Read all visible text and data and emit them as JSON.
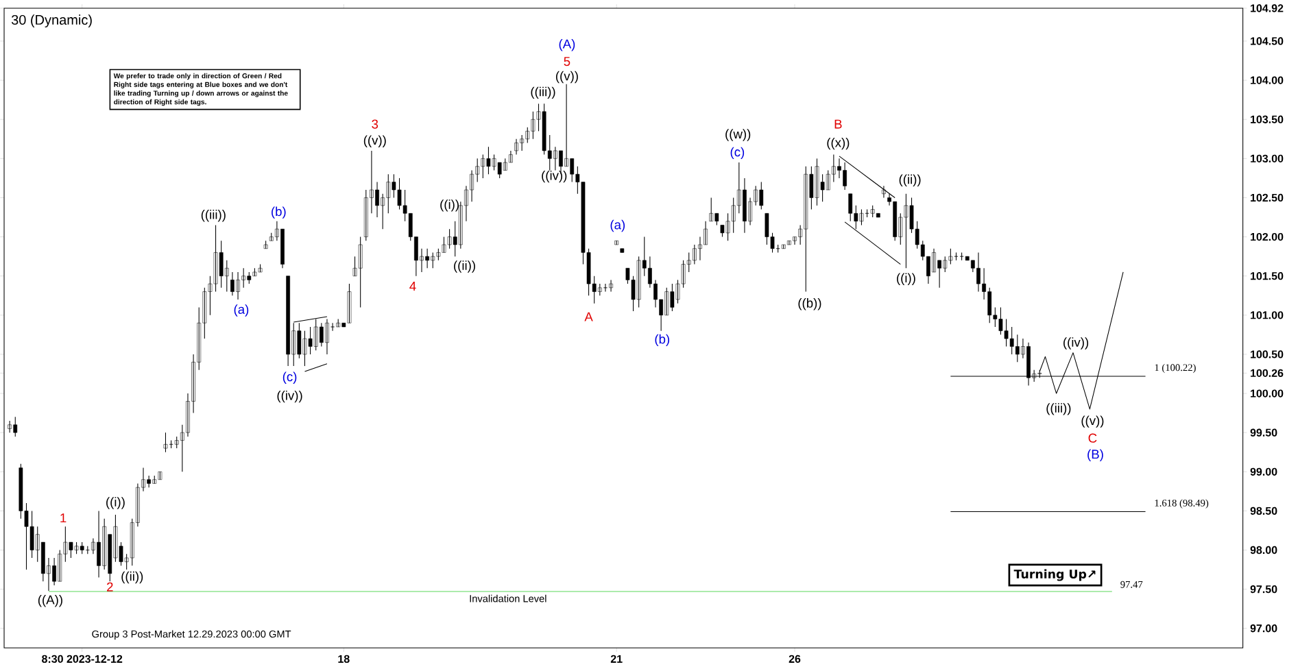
{
  "chart_data": {
    "type": "candlestick",
    "title": "30 (Dynamic)",
    "color": "#000000",
    "categories": [
      null,
      null,
      null,
      null,
      null,
      null,
      null,
      null,
      null,
      null,
      null,
      null,
      null,
      "8:30 2023-12-12",
      null,
      null,
      null,
      null,
      null,
      null,
      null,
      null,
      null,
      null,
      null,
      null,
      null,
      null,
      null,
      null,
      null,
      null,
      null,
      null,
      null,
      null,
      null,
      null,
      null,
      null,
      null,
      null,
      null,
      null,
      null,
      null,
      null,
      null,
      null,
      null,
      null,
      null,
      null,
      null,
      null,
      null,
      null,
      null,
      null,
      null,
      "18",
      null,
      null,
      null,
      null,
      null,
      null,
      null,
      null,
      null,
      null,
      null,
      null,
      null,
      null,
      null,
      null,
      null,
      null,
      null,
      null,
      null,
      null,
      null,
      null,
      null,
      null,
      null,
      null,
      null,
      null,
      null,
      null,
      null,
      null,
      null,
      null,
      null,
      null,
      null,
      null,
      null,
      null,
      null,
      null,
      null,
      null,
      null,
      null,
      "21",
      null,
      null,
      null,
      null,
      null,
      null,
      null,
      null,
      null,
      null,
      null,
      null,
      null,
      null,
      null,
      null,
      null,
      null,
      null,
      null,
      null,
      null,
      null,
      null,
      null,
      null,
      null,
      null,
      null,
      null,
      null,
      "26",
      null,
      null,
      null,
      null,
      null,
      null,
      null,
      null,
      null,
      null,
      null,
      null,
      null,
      null,
      null,
      null,
      null,
      null,
      null,
      null,
      null,
      null,
      null,
      null,
      null,
      null,
      null,
      null,
      null,
      null,
      null,
      null,
      null,
      null,
      null,
      null,
      null,
      null,
      null,
      null,
      null,
      null,
      null,
      null,
      null,
      null,
      null,
      null,
      null,
      null,
      null,
      null,
      null,
      null,
      null,
      null,
      null,
      null,
      null,
      null,
      null,
      null,
      null,
      null,
      null,
      null,
      null,
      null,
      null,
      null,
      null,
      null,
      null,
      null,
      null,
      null,
      null,
      null,
      null,
      null
    ],
    "ylim": [
      96.75,
      104.92
    ],
    "yticks": [
      {
        "value": 97,
        "label": "97.00"
      },
      {
        "value": 97.5,
        "label": "97.50"
      },
      {
        "value": 98,
        "label": "98.00"
      },
      {
        "value": 98.5,
        "label": "98.50"
      },
      {
        "value": 99,
        "label": "99.00"
      },
      {
        "value": 99.5,
        "label": "99.50"
      },
      {
        "value": 100,
        "label": "100.00"
      },
      100.26,
      {
        "value": 100.5,
        "label": "100.50"
      },
      {
        "value": 101,
        "label": "101.00"
      },
      {
        "value": 101.5,
        "label": "101.50"
      },
      {
        "value": 102,
        "label": "102.00"
      },
      {
        "value": 102.5,
        "label": "102.50"
      },
      {
        "value": 103,
        "label": "103.00"
      },
      {
        "value": 103.5,
        "label": "103.50"
      },
      {
        "value": 104,
        "label": "104.00"
      },
      {
        "value": 104.5,
        "label": "104.50"
      },
      104.92
    ],
    "ohlc": [
      [
        99.55,
        99.65,
        99.5,
        99.6
      ],
      [
        99.6,
        99.7,
        99.45,
        99.5
      ],
      [
        99.05,
        99.1,
        98.4,
        98.5
      ],
      [
        98.5,
        98.6,
        97.75,
        98.3
      ],
      [
        98.3,
        98.5,
        97.9,
        98.0
      ],
      [
        98.0,
        98.3,
        97.85,
        98.2
      ],
      [
        98.1,
        98.1,
        97.6,
        97.7
      ],
      [
        97.7,
        97.9,
        97.48,
        97.8
      ],
      [
        97.8,
        97.9,
        97.55,
        97.6
      ],
      [
        97.6,
        98.0,
        97.6,
        97.95
      ],
      [
        97.95,
        98.3,
        97.85,
        98.1
      ],
      [
        98.1,
        98.1,
        97.9,
        98.0
      ],
      [
        98.0,
        98.1,
        97.95,
        98.05
      ],
      [
        98.05,
        98.1,
        97.95,
        98.0
      ],
      [
        98.0,
        98.05,
        97.95,
        98.0
      ],
      [
        98.0,
        98.15,
        97.95,
        98.1
      ],
      [
        98.1,
        98.5,
        97.65,
        97.8
      ],
      [
        97.8,
        98.4,
        97.75,
        98.3
      ],
      [
        98.2,
        98.2,
        97.6,
        97.7
      ],
      [
        97.9,
        98.45,
        97.85,
        98.3
      ],
      [
        98.05,
        98.1,
        97.8,
        97.85
      ],
      [
        97.85,
        97.95,
        97.75,
        97.9
      ],
      [
        97.9,
        98.4,
        97.8,
        98.35
      ],
      [
        98.35,
        98.85,
        98.3,
        98.8
      ],
      [
        98.8,
        99.05,
        98.75,
        98.9
      ],
      [
        98.9,
        98.95,
        98.8,
        98.85
      ],
      [
        98.85,
        98.95,
        98.85,
        98.9
      ],
      [
        98.9,
        99.0,
        98.9,
        99.0
      ],
      [
        99.3,
        99.5,
        99.25,
        99.35
      ],
      [
        99.35,
        99.4,
        99.3,
        99.35
      ],
      [
        99.35,
        99.45,
        99.3,
        99.4
      ],
      [
        99.4,
        99.6,
        99.0,
        99.5
      ],
      [
        99.5,
        100.0,
        99.45,
        99.9
      ],
      [
        99.9,
        100.5,
        99.75,
        100.4
      ],
      [
        100.4,
        101.1,
        100.3,
        100.9
      ],
      [
        100.9,
        101.35,
        100.7,
        101.3
      ],
      [
        101.3,
        101.5,
        101.0,
        101.4
      ],
      [
        101.4,
        102.15,
        101.3,
        101.8
      ],
      [
        101.8,
        101.95,
        101.35,
        101.5
      ],
      [
        101.5,
        101.7,
        101.3,
        101.6
      ],
      [
        101.45,
        101.55,
        101.25,
        101.3
      ],
      [
        101.3,
        101.55,
        101.2,
        101.45
      ],
      [
        101.45,
        101.6,
        101.35,
        101.5
      ],
      [
        101.5,
        101.55,
        101.4,
        101.45
      ],
      [
        101.5,
        101.6,
        101.5,
        101.55
      ],
      [
        101.55,
        101.65,
        101.55,
        101.6
      ],
      [
        101.85,
        101.95,
        101.85,
        101.9
      ],
      [
        101.95,
        102.05,
        101.95,
        102.0
      ],
      [
        102.0,
        102.2,
        101.95,
        102.1
      ],
      [
        102.1,
        102.1,
        101.6,
        101.65
      ],
      [
        101.5,
        101.5,
        100.35,
        100.5
      ],
      [
        100.5,
        100.9,
        100.35,
        100.8
      ],
      [
        100.8,
        100.9,
        100.45,
        100.5
      ],
      [
        100.5,
        100.8,
        100.35,
        100.7
      ],
      [
        100.7,
        100.85,
        100.5,
        100.6
      ],
      [
        100.6,
        100.95,
        100.55,
        100.85
      ],
      [
        100.85,
        100.9,
        100.6,
        100.65
      ],
      [
        100.65,
        100.95,
        100.5,
        100.9
      ],
      [
        100.85,
        100.9,
        100.8,
        100.85
      ],
      [
        100.85,
        100.95,
        100.85,
        100.9
      ],
      [
        100.9,
        100.9,
        100.85,
        100.85
      ],
      [
        100.9,
        101.4,
        100.9,
        101.3
      ],
      [
        101.5,
        101.75,
        101.5,
        101.6
      ],
      [
        101.6,
        102.0,
        101.1,
        101.9
      ],
      [
        102.0,
        102.6,
        101.95,
        102.5
      ],
      [
        102.5,
        103.1,
        102.3,
        102.6
      ],
      [
        102.6,
        102.7,
        102.25,
        102.4
      ],
      [
        102.4,
        102.55,
        102.1,
        102.5
      ],
      [
        102.5,
        102.8,
        102.3,
        102.7
      ],
      [
        102.7,
        102.8,
        102.5,
        102.6
      ],
      [
        102.6,
        102.75,
        102.35,
        102.4
      ],
      [
        102.4,
        102.6,
        102.2,
        102.3
      ],
      [
        102.3,
        102.3,
        101.95,
        102.0
      ],
      [
        102.0,
        102.0,
        101.5,
        101.7
      ],
      [
        101.7,
        101.85,
        101.55,
        101.75
      ],
      [
        101.75,
        101.85,
        101.6,
        101.7
      ],
      [
        101.7,
        101.8,
        101.6,
        101.75
      ],
      [
        101.75,
        101.85,
        101.7,
        101.8
      ],
      [
        101.8,
        102.0,
        101.8,
        101.9
      ],
      [
        101.9,
        102.1,
        101.85,
        102.0
      ],
      [
        102.0,
        102.2,
        101.75,
        101.9
      ],
      [
        101.9,
        102.45,
        101.85,
        102.4
      ],
      [
        102.4,
        102.65,
        102.2,
        102.6
      ],
      [
        102.6,
        102.85,
        102.45,
        102.8
      ],
      [
        102.8,
        103.0,
        102.7,
        102.9
      ],
      [
        102.9,
        103.05,
        102.75,
        103.0
      ],
      [
        103.0,
        103.15,
        102.8,
        102.9
      ],
      [
        102.9,
        103.05,
        102.85,
        103.0
      ],
      [
        102.95,
        102.95,
        102.75,
        102.8
      ],
      [
        102.85,
        103.0,
        102.85,
        102.95
      ],
      [
        102.95,
        103.1,
        102.95,
        103.05
      ],
      [
        103.1,
        103.25,
        103.05,
        103.2
      ],
      [
        103.2,
        103.3,
        103.1,
        103.25
      ],
      [
        103.25,
        103.4,
        103.2,
        103.35
      ],
      [
        103.35,
        103.6,
        103.25,
        103.5
      ],
      [
        103.5,
        103.7,
        103.35,
        103.6
      ],
      [
        103.6,
        103.7,
        103.05,
        103.1
      ],
      [
        103.1,
        103.3,
        102.85,
        103.0
      ],
      [
        103.0,
        103.15,
        102.85,
        103.1
      ],
      [
        103.1,
        103.1,
        102.8,
        102.9
      ],
      [
        102.9,
        103.95,
        102.9,
        103.0
      ],
      [
        103.0,
        103.0,
        102.7,
        102.8
      ],
      [
        102.8,
        102.9,
        102.55,
        102.7
      ],
      [
        102.7,
        102.7,
        101.65,
        101.8
      ],
      [
        101.8,
        101.85,
        101.25,
        101.4
      ],
      [
        101.4,
        101.5,
        101.15,
        101.3
      ],
      [
        101.3,
        101.4,
        101.25,
        101.35
      ],
      [
        101.35,
        101.4,
        101.3,
        101.35
      ],
      [
        101.35,
        101.45,
        101.3,
        101.4
      ],
      [
        101.9,
        101.95,
        101.9,
        101.95
      ],
      [
        101.85,
        101.85,
        101.8,
        101.8
      ],
      [
        101.6,
        101.6,
        101.4,
        101.45
      ],
      [
        101.45,
        101.5,
        101.05,
        101.2
      ],
      [
        101.2,
        101.75,
        101.1,
        101.7
      ],
      [
        101.7,
        102.0,
        101.5,
        101.6
      ],
      [
        101.6,
        101.75,
        101.35,
        101.4
      ],
      [
        101.4,
        101.45,
        101.1,
        101.2
      ],
      [
        101.2,
        101.2,
        100.8,
        101.0
      ],
      [
        101.0,
        101.35,
        101.0,
        101.3
      ],
      [
        101.3,
        101.4,
        101.05,
        101.1
      ],
      [
        101.2,
        101.45,
        101.15,
        101.4
      ],
      [
        101.4,
        101.7,
        101.35,
        101.65
      ],
      [
        101.65,
        101.8,
        101.55,
        101.7
      ],
      [
        101.7,
        101.9,
        101.65,
        101.85
      ],
      [
        101.85,
        102.0,
        101.7,
        101.9
      ],
      [
        101.9,
        102.2,
        101.9,
        102.1
      ],
      [
        102.2,
        102.5,
        102.2,
        102.3
      ],
      [
        102.3,
        102.3,
        102.15,
        102.2
      ],
      [
        102.15,
        102.15,
        102.0,
        102.05
      ],
      [
        102.05,
        102.3,
        101.95,
        102.2
      ],
      [
        102.2,
        102.5,
        102.05,
        102.4
      ],
      [
        102.4,
        102.95,
        102.3,
        102.6
      ],
      [
        102.6,
        102.75,
        102.05,
        102.2
      ],
      [
        102.2,
        102.5,
        102.15,
        102.45
      ],
      [
        102.45,
        102.65,
        102.4,
        102.6
      ],
      [
        102.6,
        102.7,
        102.35,
        102.4
      ],
      [
        102.3,
        102.3,
        101.9,
        102.0
      ],
      [
        102.0,
        102.05,
        101.8,
        101.85
      ],
      [
        101.85,
        101.9,
        101.8,
        101.85
      ],
      [
        101.85,
        101.9,
        101.85,
        101.9
      ],
      [
        101.9,
        101.95,
        101.9,
        101.95
      ],
      [
        101.95,
        102.0,
        101.9,
        102.0
      ],
      [
        102.0,
        102.15,
        101.9,
        102.1
      ],
      [
        102.1,
        102.9,
        101.3,
        102.8
      ],
      [
        102.8,
        102.9,
        102.35,
        102.5
      ],
      [
        102.5,
        103.0,
        102.4,
        102.9
      ],
      [
        102.7,
        102.8,
        102.45,
        102.6
      ],
      [
        102.6,
        102.85,
        102.6,
        102.8
      ],
      [
        102.8,
        103.05,
        102.7,
        102.9
      ],
      [
        102.9,
        103.0,
        102.75,
        102.85
      ],
      [
        102.85,
        102.95,
        102.6,
        102.65
      ],
      [
        102.55,
        102.55,
        102.2,
        102.3
      ],
      [
        102.3,
        102.4,
        102.1,
        102.2
      ],
      [
        102.2,
        102.35,
        102.15,
        102.3
      ],
      [
        102.3,
        102.35,
        102.25,
        102.3
      ],
      [
        102.3,
        102.4,
        102.25,
        102.35
      ],
      [
        102.3,
        102.3,
        102.25,
        102.25
      ],
      [
        102.55,
        102.65,
        102.5,
        102.6
      ],
      [
        102.5,
        102.55,
        102.4,
        102.45
      ],
      [
        102.45,
        102.45,
        101.95,
        102.0
      ],
      [
        102.0,
        102.3,
        101.9,
        102.25
      ],
      [
        102.25,
        102.55,
        101.6,
        102.4
      ],
      [
        102.4,
        102.5,
        102.05,
        102.1
      ],
      [
        102.1,
        102.2,
        101.85,
        101.9
      ],
      [
        101.9,
        101.95,
        101.7,
        101.75
      ],
      [
        101.75,
        101.75,
        101.4,
        101.5
      ],
      [
        101.55,
        101.85,
        101.55,
        101.8
      ],
      [
        101.7,
        101.7,
        101.35,
        101.6
      ],
      [
        101.6,
        101.75,
        101.55,
        101.7
      ],
      [
        101.7,
        101.85,
        101.65,
        101.75
      ],
      [
        101.75,
        101.8,
        101.7,
        101.75
      ],
      [
        101.75,
        101.8,
        101.7,
        101.75
      ],
      [
        101.75,
        101.75,
        101.7,
        101.7
      ],
      [
        101.7,
        101.7,
        101.55,
        101.6
      ],
      [
        101.6,
        101.8,
        101.3,
        101.4
      ],
      [
        101.4,
        101.6,
        101.2,
        101.3
      ],
      [
        101.3,
        101.35,
        100.9,
        101.0
      ],
      [
        101.0,
        101.1,
        100.85,
        100.95
      ],
      [
        100.95,
        101.1,
        100.75,
        100.8
      ],
      [
        100.8,
        100.95,
        100.6,
        100.7
      ],
      [
        100.7,
        100.85,
        100.5,
        100.6
      ],
      [
        100.6,
        100.75,
        100.4,
        100.5
      ],
      [
        100.5,
        100.7,
        100.45,
        100.6
      ],
      [
        100.6,
        100.65,
        100.1,
        100.2
      ],
      [
        100.2,
        100.3,
        100.15,
        100.25
      ],
      [
        100.25,
        100.3,
        100.2,
        100.26
      ],
      null,
      null,
      null,
      null,
      null,
      null,
      null,
      null,
      null,
      null,
      null,
      null,
      null,
      null,
      null,
      null,
      null,
      null,
      null,
      null,
      null,
      null,
      null,
      null,
      null,
      null,
      null,
      null,
      null,
      null,
      null,
      null,
      null,
      null,
      null,
      null
    ],
    "series": [
      {
        "type": "line",
        "color": "#000000",
        "values": [
          null,
          null,
          null,
          null,
          null,
          null,
          null,
          null,
          null,
          null,
          null,
          null,
          null,
          null,
          null,
          null,
          null,
          null,
          null,
          null,
          null,
          null,
          null,
          null,
          null,
          null,
          null,
          null,
          null,
          null,
          null,
          null,
          null,
          null,
          null,
          null,
          null,
          null,
          null,
          null,
          null,
          null,
          null,
          null,
          null,
          null,
          null,
          null,
          null,
          null,
          null,
          null,
          null,
          null,
          null,
          null,
          null,
          null,
          null,
          null,
          null,
          null,
          null,
          null,
          null,
          null,
          null,
          null,
          null,
          null,
          null,
          null,
          null,
          null,
          null,
          null,
          null,
          null,
          null,
          null,
          null,
          null,
          null,
          null,
          null,
          null,
          null,
          null,
          null,
          null,
          null,
          null,
          null,
          null,
          null,
          null,
          null,
          null,
          null,
          null,
          null,
          null,
          null,
          null,
          null,
          null,
          null,
          null,
          null,
          null,
          null,
          null,
          null,
          null,
          null,
          null,
          null,
          null,
          null,
          null,
          null,
          null,
          null,
          null,
          null,
          null,
          null,
          null,
          null,
          null,
          null,
          null,
          null,
          null,
          null,
          null,
          null,
          null,
          null,
          null,
          null,
          null,
          null,
          null,
          null,
          null,
          null,
          null,
          null,
          null,
          null,
          null,
          null,
          null,
          null,
          null,
          null,
          null,
          null,
          null,
          null,
          null,
          null,
          null,
          null,
          null,
          null,
          null,
          null,
          null,
          null,
          null,
          null,
          null,
          null,
          null,
          null,
          null,
          null,
          null,
          null,
          null,
          null,
          null,
          null,
          100.28,
          100.47,
          null,
          100.0,
          null,
          null,
          100.52,
          null,
          null,
          99.8,
          null,
          null,
          null,
          null,
          null,
          101.55,
          null,
          null,
          null,
          null,
          null,
          null,
          null,
          null,
          null,
          null,
          null,
          null,
          null,
          null,
          null,
          null,
          null,
          null,
          null,
          null,
          null
        ]
      },
      {
        "type": "line",
        "color": "#000000",
        "values": [
          null,
          null,
          null,
          null,
          null,
          null,
          null,
          null,
          null,
          null,
          null,
          null,
          null,
          null,
          null,
          null,
          null,
          null,
          null,
          null,
          null,
          null,
          null,
          null,
          null,
          null,
          null,
          null,
          null,
          null,
          null,
          null,
          null,
          null,
          null,
          null,
          null,
          null,
          null,
          null,
          null,
          null,
          null,
          null,
          null,
          null,
          null,
          null,
          null,
          null,
          null,
          100.91,
          null,
          null,
          null,
          null,
          null,
          100.98,
          null,
          null,
          null,
          null,
          null,
          null,
          null,
          null,
          null,
          null,
          null,
          null,
          null,
          null,
          null,
          null,
          null,
          null,
          null,
          null,
          null,
          null,
          null,
          null,
          null,
          null,
          null,
          null,
          null,
          null,
          null,
          null,
          null,
          null,
          null,
          null,
          null,
          null,
          null,
          null,
          null,
          null,
          null,
          null,
          null,
          null,
          null,
          null,
          null,
          null,
          null,
          null,
          null,
          null,
          null,
          null,
          null,
          null,
          null,
          null,
          null,
          null,
          null,
          null,
          null,
          null,
          null,
          null,
          null,
          null,
          null,
          null,
          null,
          null,
          null,
          null,
          null,
          null,
          null,
          null,
          null,
          null,
          null,
          null,
          null,
          null,
          null,
          null,
          null,
          null,
          null,
          null,
          null,
          null,
          null,
          null,
          null,
          null,
          null,
          null,
          null,
          null,
          null,
          null,
          null,
          null,
          null,
          null,
          null,
          null,
          null,
          null,
          null,
          null,
          null,
          null,
          null,
          null,
          null,
          null,
          null,
          null,
          null,
          null,
          null,
          null,
          null,
          null,
          null,
          null,
          null,
          null,
          null,
          null,
          null,
          null,
          null,
          null,
          null,
          null,
          null,
          null,
          null,
          null,
          null,
          null,
          null,
          null,
          null,
          null,
          null,
          null,
          null,
          null,
          null,
          null,
          null,
          null,
          null,
          null,
          null,
          null,
          null,
          null
        ]
      },
      {
        "type": "line",
        "color": "#000000",
        "values": [
          null,
          null,
          null,
          null,
          null,
          null,
          null,
          null,
          null,
          null,
          null,
          null,
          null,
          null,
          null,
          null,
          null,
          null,
          null,
          null,
          null,
          null,
          null,
          null,
          null,
          null,
          null,
          null,
          null,
          null,
          null,
          null,
          null,
          null,
          null,
          null,
          null,
          null,
          null,
          null,
          null,
          null,
          null,
          null,
          null,
          null,
          null,
          null,
          null,
          null,
          null,
          null,
          null,
          100.28,
          null,
          null,
          null,
          100.38,
          null,
          null,
          null,
          null,
          null,
          null,
          null,
          null,
          null,
          null,
          null,
          null,
          null,
          null,
          null,
          null,
          null,
          null,
          null,
          null,
          null,
          null,
          null,
          null,
          null,
          null,
          null,
          null,
          null,
          null,
          null,
          null,
          null,
          null,
          null,
          null,
          null,
          null,
          null,
          null,
          null,
          null,
          null,
          null,
          null,
          null,
          null,
          null,
          null,
          null,
          null,
          null,
          null,
          null,
          null,
          null,
          null,
          null,
          null,
          null,
          null,
          null,
          null,
          null,
          null,
          null,
          null,
          null,
          null,
          null,
          null,
          null,
          null,
          null,
          null,
          null,
          null,
          null,
          null,
          null,
          null,
          null,
          null,
          null,
          null,
          null,
          null,
          null,
          null,
          null,
          null,
          null,
          null,
          null,
          null,
          null,
          null,
          null,
          null,
          null,
          null,
          null,
          null,
          null,
          null,
          null,
          null,
          null,
          null,
          null,
          null,
          null,
          null,
          null,
          null,
          null,
          null,
          null,
          null,
          null,
          null,
          null,
          null,
          null,
          null,
          null,
          null,
          null,
          null,
          null,
          null,
          null,
          null,
          null,
          null,
          null,
          null,
          null,
          null,
          null,
          null,
          null,
          null,
          null,
          null,
          null,
          null,
          null,
          null,
          null,
          null,
          null,
          null,
          null,
          null,
          null,
          null,
          null,
          null,
          null,
          null,
          null,
          null,
          null
        ]
      },
      {
        "type": "line",
        "color": "#000000",
        "values": [
          null,
          null,
          null,
          null,
          null,
          null,
          null,
          null,
          null,
          null,
          null,
          null,
          null,
          null,
          null,
          null,
          null,
          null,
          null,
          null,
          null,
          null,
          null,
          null,
          null,
          null,
          null,
          null,
          null,
          null,
          null,
          null,
          null,
          null,
          null,
          null,
          null,
          null,
          null,
          null,
          null,
          null,
          null,
          null,
          null,
          null,
          null,
          null,
          null,
          null,
          null,
          null,
          null,
          null,
          null,
          null,
          null,
          null,
          null,
          null,
          null,
          null,
          null,
          null,
          null,
          null,
          null,
          null,
          null,
          null,
          null,
          null,
          null,
          null,
          null,
          null,
          null,
          null,
          null,
          null,
          null,
          null,
          null,
          null,
          null,
          null,
          null,
          null,
          null,
          null,
          null,
          null,
          null,
          null,
          null,
          null,
          null,
          null,
          null,
          null,
          null,
          null,
          null,
          null,
          null,
          null,
          null,
          null,
          null,
          null,
          null,
          null,
          null,
          null,
          null,
          null,
          null,
          null,
          null,
          null,
          null,
          null,
          null,
          null,
          null,
          null,
          null,
          null,
          null,
          null,
          null,
          null,
          null,
          null,
          null,
          null,
          null,
          null,
          null,
          null,
          null,
          null,
          null,
          null,
          null,
          null,
          null,
          null,
          null,
          103.03,
          null,
          null,
          null,
          null,
          null,
          null,
          null,
          null,
          null,
          102.5,
          null,
          null,
          null,
          null,
          null,
          null,
          null,
          null,
          null,
          null,
          null,
          null,
          null,
          null,
          null,
          null,
          null,
          null,
          null,
          null,
          null,
          null,
          null,
          null,
          null,
          null,
          null,
          null,
          null,
          null,
          null,
          null,
          null,
          null,
          null,
          null,
          null,
          null,
          null,
          null,
          null,
          null,
          null,
          null,
          null,
          null,
          null,
          null,
          null,
          null,
          null,
          null,
          null,
          null,
          null,
          null,
          null,
          null,
          null,
          null,
          null,
          null
        ]
      },
      {
        "type": "line",
        "color": "#000000",
        "values": [
          null,
          null,
          null,
          null,
          null,
          null,
          null,
          null,
          null,
          null,
          null,
          null,
          null,
          null,
          null,
          null,
          null,
          null,
          null,
          null,
          null,
          null,
          null,
          null,
          null,
          null,
          null,
          null,
          null,
          null,
          null,
          null,
          null,
          null,
          null,
          null,
          null,
          null,
          null,
          null,
          null,
          null,
          null,
          null,
          null,
          null,
          null,
          null,
          null,
          null,
          null,
          null,
          null,
          null,
          null,
          null,
          null,
          null,
          null,
          null,
          null,
          null,
          null,
          null,
          null,
          null,
          null,
          null,
          null,
          null,
          null,
          null,
          null,
          null,
          null,
          null,
          null,
          null,
          null,
          null,
          null,
          null,
          null,
          null,
          null,
          null,
          null,
          null,
          null,
          null,
          null,
          null,
          null,
          null,
          null,
          null,
          null,
          null,
          null,
          null,
          null,
          null,
          null,
          null,
          null,
          null,
          null,
          null,
          null,
          null,
          null,
          null,
          null,
          null,
          null,
          null,
          null,
          null,
          null,
          null,
          null,
          null,
          null,
          null,
          null,
          null,
          null,
          null,
          null,
          null,
          null,
          null,
          null,
          null,
          null,
          null,
          null,
          null,
          null,
          null,
          null,
          null,
          null,
          null,
          null,
          null,
          null,
          null,
          null,
          null,
          102.19,
          null,
          null,
          null,
          null,
          null,
          null,
          null,
          null,
          null,
          101.65,
          null,
          null,
          null,
          null,
          null,
          null,
          null,
          null,
          null,
          null,
          null,
          null,
          null,
          null,
          null,
          null,
          null,
          null,
          null,
          null,
          null,
          null,
          null,
          null,
          null,
          null,
          null,
          null,
          null,
          null,
          null,
          null,
          null,
          null,
          null,
          null,
          null,
          null,
          null,
          null,
          null,
          null,
          null,
          null,
          null,
          null,
          null,
          null,
          null,
          null,
          null,
          null,
          null,
          null,
          null,
          null,
          null,
          null,
          null,
          null,
          null
        ]
      }
    ],
    "ref_lines": [
      {
        "axis": "y",
        "value": 100.22,
        "label": "1 (100.22)"
      },
      {
        "axis": "y",
        "value": 98.49,
        "label": "1.618 (98.49)"
      },
      {
        "axis": "y",
        "value": 97.47,
        "label": "Invalidation Level",
        "color": "#5ad85a"
      }
    ],
    "annotations": [
      "((A))",
      "1",
      "2",
      "((i))",
      "((ii))",
      "((iii))",
      "(a)",
      "(b)",
      "(c)",
      "((iv))",
      "3",
      "((v))",
      "4",
      "((i))",
      "((ii))",
      "((iii))",
      "((iv))",
      "(A)",
      "5",
      "((v))",
      "A",
      "(a)",
      "(b)",
      "((w))",
      "(c)",
      "B",
      "((x))",
      "((b))",
      "((ii))",
      "((i))",
      "((iv))",
      "((iii))",
      "((v))",
      "C",
      "(B)",
      "97.47",
      "Turning Up↗",
      "We prefer to trade only in direction of Green / Red Right side tags entering at Blue boxes and we don't like trading Turning up / down arrows or against the direction of Right side tags.",
      "Group 3 Post-Market 12.29.2023 00:00 GMT"
    ]
  }
}
